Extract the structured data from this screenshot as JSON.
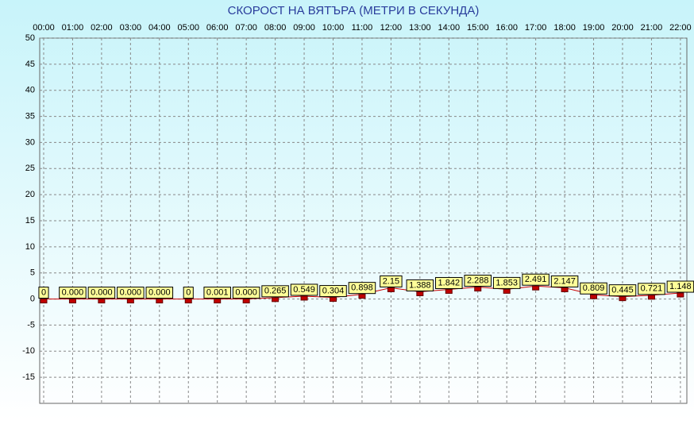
{
  "chart_data": {
    "type": "line",
    "title": "СКОРОСТ НА ВЯТЪРА (МЕТРИ В СЕКУНДА)",
    "categories": [
      "00:00",
      "01:00",
      "02:00",
      "03:00",
      "04:00",
      "05:00",
      "06:00",
      "07:00",
      "08:00",
      "09:00",
      "10:00",
      "11:00",
      "12:00",
      "13:00",
      "14:00",
      "15:00",
      "16:00",
      "17:00",
      "18:00",
      "19:00",
      "20:00",
      "21:00",
      "22:00"
    ],
    "series": [
      {
        "color": "#cc0000",
        "values": [
          0,
          0,
          0,
          0,
          0,
          0,
          0.001,
          0,
          0.265,
          0.549,
          0.304,
          0.898,
          2.15,
          1.388,
          1.842,
          2.288,
          1.853,
          2.491,
          2.147,
          0.809,
          0.445,
          0.721,
          1.148
        ],
        "value_labels": [
          "0",
          "0.000",
          "0.000",
          "0.000",
          "0.000",
          "0",
          "0.001",
          "0.000",
          "0.265",
          "0.549",
          "0.304",
          "0.898",
          "2.15",
          "1.388",
          "1.842",
          "2.288",
          "1.853",
          "2.491",
          "2.147",
          "0.809",
          "0.445",
          "0.721",
          "1.148"
        ]
      }
    ],
    "ylim": [
      -20,
      50
    ],
    "yticks": [
      50,
      45,
      40,
      35,
      30,
      25,
      20,
      15,
      10,
      5,
      0,
      -5,
      -10,
      -15
    ],
    "grid": true
  }
}
